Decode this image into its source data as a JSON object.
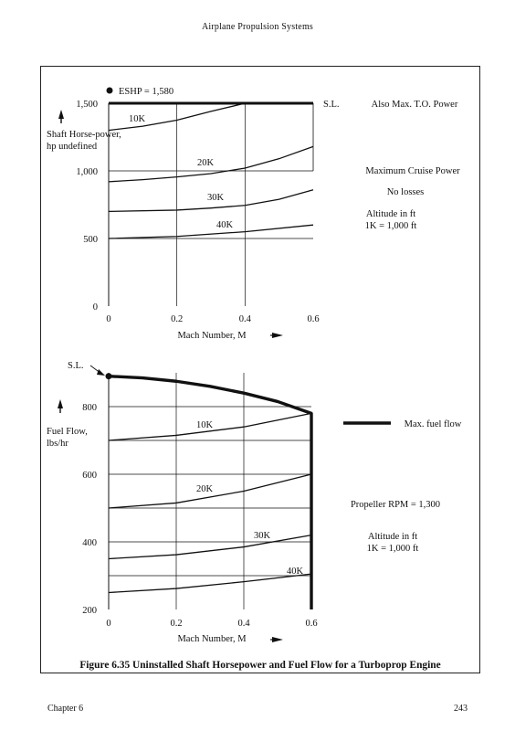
{
  "page": {
    "header": "Airplane Propulsion Systems",
    "caption": "Figure 6.35 Uninstalled Shaft Horsepower and Fuel Flow for a Turboprop Engine",
    "footer_left": "Chapter 6",
    "footer_right": "243"
  },
  "chart_data": [
    {
      "type": "line",
      "ylabel": "Shaft Horse-power, hp",
      "xlabel": "Mach Number, M",
      "xlim": [
        0,
        0.6
      ],
      "ylim": [
        0,
        1500
      ],
      "x_ticks": [
        "0",
        "0.2",
        "0.4",
        "0.6"
      ],
      "y_ticks": [
        "0",
        "500",
        "1,000",
        "1,500"
      ],
      "annotations": [
        "ESHP = 1,580",
        "S.L.",
        "Also Max. T.O. Power",
        "Maximum Cruise Power",
        "No losses",
        "Altitude in ft",
        "1K = 1,000 ft"
      ],
      "series": [
        {
          "name": "S.L.",
          "x": [
            0,
            0.6
          ],
          "y": [
            1500,
            1500
          ]
        },
        {
          "name": "10K",
          "x": [
            0,
            0.1,
            0.2,
            0.3,
            0.4
          ],
          "y": [
            1300,
            1330,
            1375,
            1440,
            1500
          ]
        },
        {
          "name": "20K",
          "x": [
            0,
            0.1,
            0.2,
            0.3,
            0.4,
            0.5,
            0.6
          ],
          "y": [
            920,
            935,
            955,
            980,
            1020,
            1090,
            1180
          ]
        },
        {
          "name": "30K",
          "x": [
            0,
            0.2,
            0.3,
            0.4,
            0.5,
            0.6
          ],
          "y": [
            700,
            710,
            725,
            745,
            790,
            860
          ]
        },
        {
          "name": "40K",
          "x": [
            0,
            0.2,
            0.4,
            0.6
          ],
          "y": [
            500,
            515,
            550,
            600
          ]
        }
      ]
    },
    {
      "type": "line",
      "ylabel": "Fuel Flow, lbs/hr",
      "xlabel": "Mach Number, M",
      "xlim": [
        0,
        0.6
      ],
      "ylim": [
        200,
        900
      ],
      "x_ticks": [
        "0",
        "0.2",
        "0.4",
        "0.6"
      ],
      "y_ticks": [
        "200",
        "400",
        "600",
        "800"
      ],
      "annotations": [
        "S.L.",
        "Max. fuel flow",
        "Propeller RPM = 1,300",
        "Altitude in ft",
        "1K = 1,000 ft"
      ],
      "series": [
        {
          "name": "Max. fuel flow",
          "x": [
            0,
            0.1,
            0.2,
            0.3,
            0.4,
            0.5,
            0.6,
            0.6
          ],
          "y": [
            890,
            885,
            875,
            860,
            840,
            815,
            780,
            200
          ]
        },
        {
          "name": "10K",
          "x": [
            0,
            0.2,
            0.4,
            0.6
          ],
          "y": [
            700,
            715,
            740,
            780
          ]
        },
        {
          "name": "20K",
          "x": [
            0,
            0.2,
            0.4,
            0.6
          ],
          "y": [
            500,
            515,
            550,
            600
          ]
        },
        {
          "name": "30K",
          "x": [
            0,
            0.2,
            0.4,
            0.6
          ],
          "y": [
            350,
            362,
            385,
            420
          ]
        },
        {
          "name": "40K",
          "x": [
            0,
            0.2,
            0.4,
            0.6
          ],
          "y": [
            250,
            262,
            282,
            305
          ]
        }
      ]
    }
  ]
}
